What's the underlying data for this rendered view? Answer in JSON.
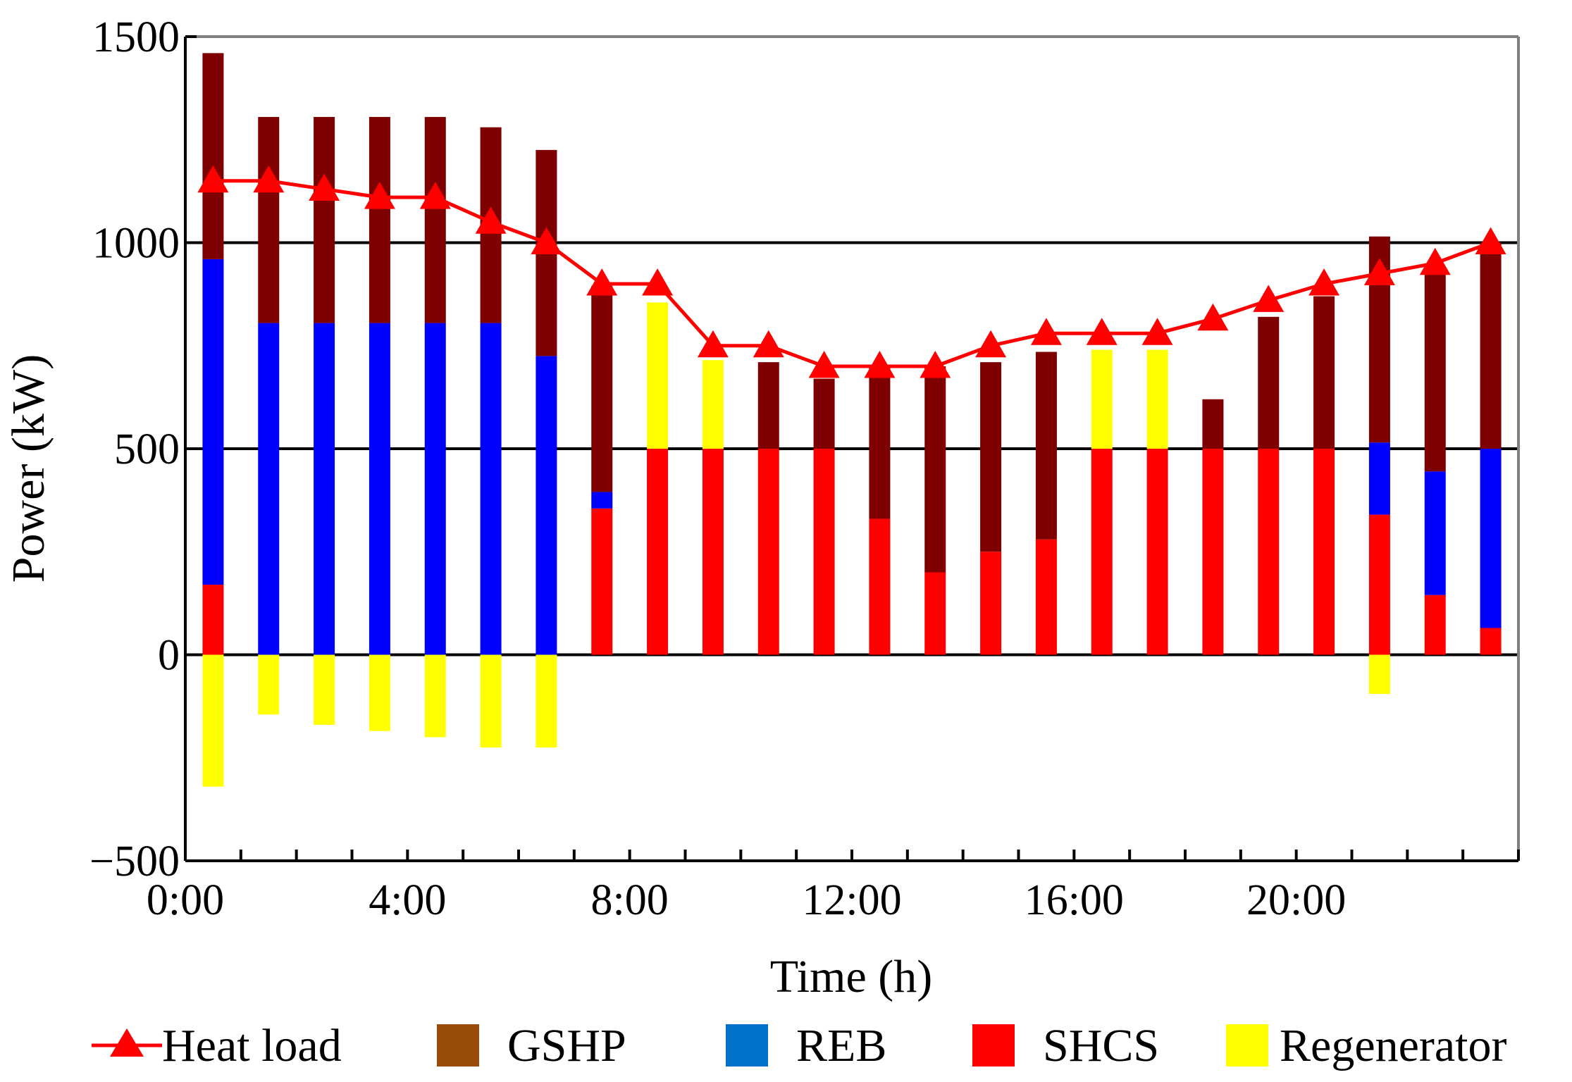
{
  "chart_data": {
    "type": "bar",
    "stacked": true,
    "title": "",
    "xlabel": "Time (h)",
    "ylabel": "Power (kW)",
    "ylim": [
      -500,
      1500
    ],
    "yticks": [
      -500,
      0,
      500,
      1000,
      1500
    ],
    "ytick_labels": [
      "−500",
      "0",
      "500",
      "1000",
      "1500"
    ],
    "xlim": [
      -0.5,
      23.5
    ],
    "xtick_labels": [
      {
        "label": "0:00",
        "x": -0.5
      },
      {
        "label": "4:00",
        "x": 3.5
      },
      {
        "label": "8:00",
        "x": 7.5
      },
      {
        "label": "12:00",
        "x": 11.5
      },
      {
        "label": "16:00",
        "x": 15.5
      },
      {
        "label": "20:00",
        "x": 19.5
      }
    ],
    "gridlines_y": [
      0,
      500,
      1000
    ],
    "categories": [
      0,
      1,
      2,
      3,
      4,
      5,
      6,
      7,
      8,
      9,
      10,
      11,
      12,
      13,
      14,
      15,
      16,
      17,
      18,
      19,
      20,
      21,
      22,
      23
    ],
    "series": [
      {
        "name": "SHCS",
        "color": "#ff0000",
        "values": [
          170,
          0,
          0,
          0,
          0,
          0,
          0,
          355,
          500,
          500,
          500,
          500,
          330,
          200,
          250,
          280,
          500,
          500,
          500,
          500,
          500,
          340,
          145,
          65
        ]
      },
      {
        "name": "REB",
        "color": "#0000ff",
        "values": [
          790,
          805,
          805,
          805,
          805,
          805,
          725,
          40,
          0,
          0,
          0,
          0,
          0,
          0,
          0,
          0,
          0,
          0,
          0,
          0,
          0,
          175,
          300,
          435
        ]
      },
      {
        "name": "Regenerator",
        "color": "#ffff00",
        "values": [
          -320,
          -145,
          -170,
          -185,
          -200,
          -225,
          -225,
          0,
          355,
          215,
          0,
          0,
          0,
          0,
          0,
          0,
          240,
          240,
          0,
          0,
          0,
          -95,
          0,
          0
        ]
      },
      {
        "name": "GSHP",
        "color": "#7f0000",
        "values": [
          500,
          500,
          500,
          500,
          500,
          475,
          500,
          500,
          0,
          0,
          210,
          170,
          370,
          500,
          460,
          455,
          0,
          0,
          120,
          320,
          370,
          500,
          485,
          500
        ]
      }
    ],
    "stack_order": [
      "SHCS",
      "REB",
      "Regenerator",
      "GSHP"
    ],
    "line_series": {
      "name": "Heat load",
      "color": "#ff0000",
      "marker": "triangle",
      "values": [
        1150,
        1150,
        1130,
        1110,
        1110,
        1050,
        1000,
        900,
        900,
        750,
        750,
        700,
        700,
        700,
        750,
        780,
        780,
        780,
        815,
        860,
        900,
        925,
        950,
        1000
      ]
    },
    "legend": {
      "placement": "bottom",
      "items": [
        {
          "label": "Heat load",
          "kind": "line",
          "color": "#ff0000"
        },
        {
          "label": "GSHP",
          "kind": "box",
          "color": "#994c0a"
        },
        {
          "label": "REB",
          "kind": "box",
          "color": "#0070c8"
        },
        {
          "label": "SHCS",
          "kind": "box",
          "color": "#ff0000"
        },
        {
          "label": "Regenerator",
          "kind": "box",
          "color": "#ffff00"
        }
      ]
    }
  }
}
